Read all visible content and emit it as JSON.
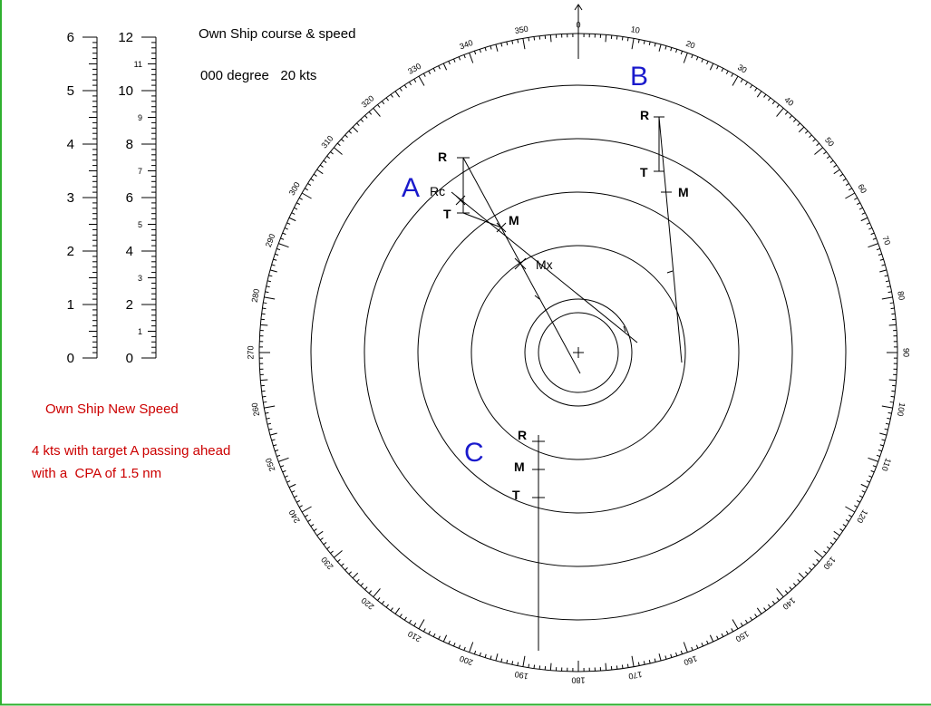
{
  "own_ship": {
    "heading": "Own Ship course & speed",
    "value": "000 degree   20 kts"
  },
  "new_speed": {
    "heading": "Own Ship New Speed",
    "lines": [
      "4 kts with target A passing ahead",
      "with a  CPA of 1.5 nm"
    ]
  },
  "scales": {
    "left": {
      "labels": [
        "0",
        "1",
        "2",
        "3",
        "4",
        "5",
        "6"
      ]
    },
    "right": {
      "labels": [
        "0",
        "2",
        "4",
        "6",
        "8",
        "10",
        "12"
      ],
      "minor_labels": [
        "1",
        "3",
        "5",
        "7",
        "9",
        "11"
      ]
    }
  },
  "compass": {
    "labels": [
      "0",
      "10",
      "20",
      "30",
      "40",
      "50",
      "60",
      "70",
      "80",
      "90",
      "100",
      "110",
      "120",
      "130",
      "140",
      "150",
      "160",
      "170",
      "180",
      "190",
      "200",
      "210",
      "220",
      "230",
      "240",
      "250",
      "260",
      "270",
      "280",
      "290",
      "300",
      "310",
      "320",
      "330",
      "340",
      "350"
    ]
  },
  "targets": [
    {
      "label": "A",
      "points": [
        "R",
        "T",
        "M"
      ],
      "extra": [
        "Rc",
        "Mx"
      ]
    },
    {
      "label": "B",
      "points": [
        "R",
        "T",
        "M"
      ]
    },
    {
      "label": "C",
      "points": [
        "R",
        "M",
        "T"
      ]
    }
  ]
}
